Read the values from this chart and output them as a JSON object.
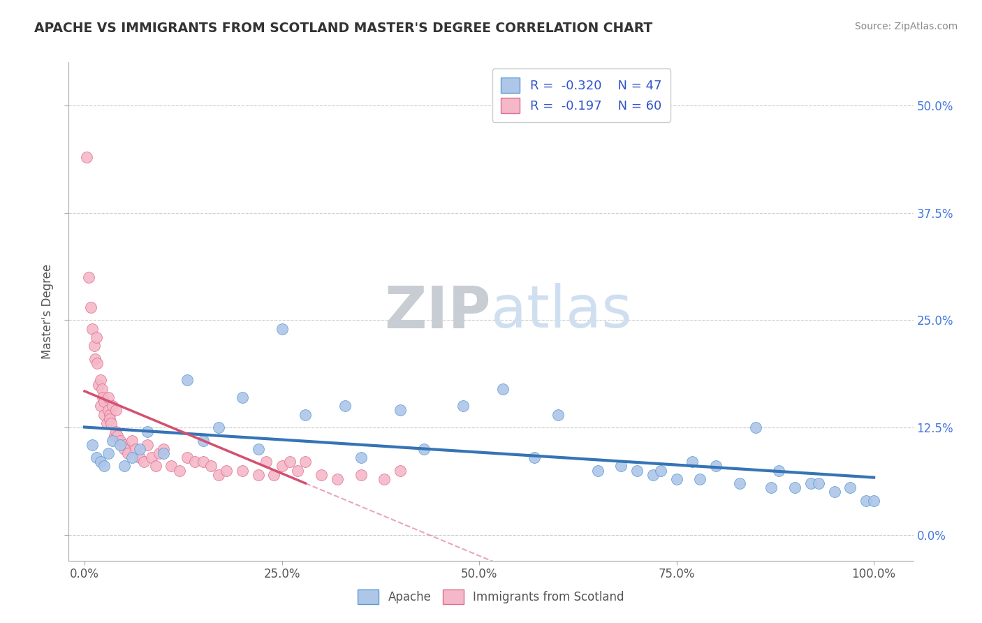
{
  "title": "APACHE VS IMMIGRANTS FROM SCOTLAND MASTER'S DEGREE CORRELATION CHART",
  "source": "Source: ZipAtlas.com",
  "ylabel": "Master's Degree",
  "xlim": [
    -2,
    105
  ],
  "ylim": [
    -3,
    55
  ],
  "ytick_labels": [
    "0.0%",
    "12.5%",
    "25.0%",
    "37.5%",
    "50.0%"
  ],
  "ytick_values": [
    0,
    12.5,
    25.0,
    37.5,
    50.0
  ],
  "xtick_labels": [
    "0.0%",
    "25.0%",
    "50.0%",
    "75.0%",
    "100.0%"
  ],
  "xtick_values": [
    0,
    25,
    50,
    75,
    100
  ],
  "apache_color": "#aec6e8",
  "apache_edge_color": "#5b9bd5",
  "apache_line_color": "#3574b5",
  "scotland_color": "#f4b8c8",
  "scotland_edge_color": "#e07090",
  "scotland_line_color": "#d45070",
  "legend_text_color": "#3355cc",
  "right_tick_color": "#4477dd",
  "watermark_color": "#d0dff0",
  "R_apache": -0.32,
  "N_apache": 47,
  "R_scotland": -0.197,
  "N_scotland": 60,
  "apache_x": [
    1.0,
    1.5,
    2.0,
    2.5,
    3.0,
    3.5,
    4.5,
    5.0,
    6.0,
    7.0,
    8.0,
    10.0,
    13.0,
    15.0,
    17.0,
    20.0,
    22.0,
    25.0,
    28.0,
    33.0,
    35.0,
    40.0,
    43.0,
    48.0,
    53.0,
    57.0,
    60.0,
    65.0,
    68.0,
    70.0,
    72.0,
    73.0,
    75.0,
    77.0,
    78.0,
    80.0,
    83.0,
    85.0,
    87.0,
    88.0,
    90.0,
    92.0,
    93.0,
    95.0,
    97.0,
    99.0,
    100.0
  ],
  "apache_y": [
    10.5,
    9.0,
    8.5,
    8.0,
    9.5,
    11.0,
    10.5,
    8.0,
    9.0,
    10.0,
    12.0,
    9.5,
    18.0,
    11.0,
    12.5,
    16.0,
    10.0,
    24.0,
    14.0,
    15.0,
    9.0,
    14.5,
    10.0,
    15.0,
    17.0,
    9.0,
    14.0,
    7.5,
    8.0,
    7.5,
    7.0,
    7.5,
    6.5,
    8.5,
    6.5,
    8.0,
    6.0,
    12.5,
    5.5,
    7.5,
    5.5,
    6.0,
    6.0,
    5.0,
    5.5,
    4.0,
    4.0
  ],
  "scotland_x": [
    0.3,
    0.5,
    0.8,
    1.0,
    1.2,
    1.3,
    1.5,
    1.6,
    1.8,
    2.0,
    2.0,
    2.2,
    2.3,
    2.5,
    2.5,
    2.8,
    3.0,
    3.0,
    3.2,
    3.2,
    3.4,
    3.5,
    3.8,
    4.0,
    4.0,
    4.2,
    4.5,
    5.0,
    5.0,
    5.5,
    6.0,
    6.5,
    7.0,
    7.5,
    8.0,
    8.5,
    9.0,
    9.5,
    10.0,
    11.0,
    12.0,
    13.0,
    14.0,
    15.0,
    16.0,
    17.0,
    18.0,
    20.0,
    22.0,
    23.0,
    24.0,
    25.0,
    26.0,
    27.0,
    28.0,
    30.0,
    32.0,
    35.0,
    38.0,
    40.0
  ],
  "scotland_y": [
    44.0,
    30.0,
    26.5,
    24.0,
    22.0,
    20.5,
    23.0,
    20.0,
    17.5,
    18.0,
    15.0,
    17.0,
    16.0,
    15.5,
    14.0,
    13.0,
    16.0,
    14.5,
    14.0,
    13.5,
    13.0,
    15.0,
    11.5,
    14.5,
    12.0,
    11.5,
    11.0,
    10.5,
    10.0,
    9.5,
    11.0,
    10.0,
    9.0,
    8.5,
    10.5,
    9.0,
    8.0,
    9.5,
    10.0,
    8.0,
    7.5,
    9.0,
    8.5,
    8.5,
    8.0,
    7.0,
    7.5,
    7.5,
    7.0,
    8.5,
    7.0,
    8.0,
    8.5,
    7.5,
    8.5,
    7.0,
    6.5,
    7.0,
    6.5,
    7.5
  ]
}
